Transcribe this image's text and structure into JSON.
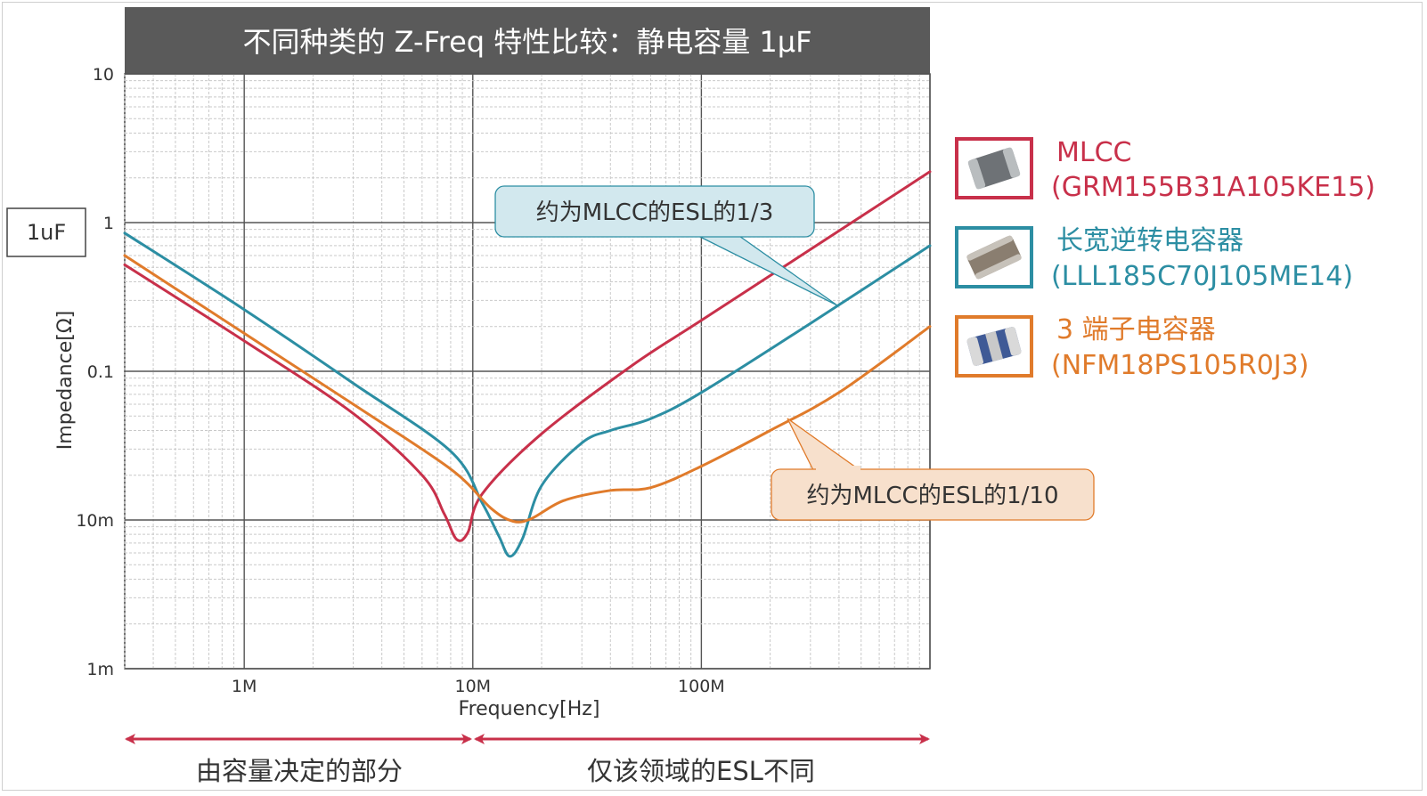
{
  "chart_data": {
    "type": "line",
    "title": "不同种类的 Z-Freq 特性比较：静电容量 1μF",
    "badge": "1uF",
    "xlabel": "Frequency[Hz]",
    "ylabel": "Impedance[Ω]",
    "x_scale": "log",
    "y_scale": "log",
    "xlim": [
      300000,
      1000000000
    ],
    "ylim": [
      0.001,
      10
    ],
    "x_ticks": [
      {
        "value": 1000000,
        "label": "1M"
      },
      {
        "value": 10000000,
        "label": "10M"
      },
      {
        "value": 100000000,
        "label": "100M"
      }
    ],
    "y_ticks": [
      {
        "value": 0.001,
        "label": "1m"
      },
      {
        "value": 0.01,
        "label": "10m"
      },
      {
        "value": 0.1,
        "label": "0.1"
      },
      {
        "value": 1,
        "label": "1"
      },
      {
        "value": 10,
        "label": "10"
      }
    ],
    "grid": true,
    "legend_position": "right",
    "series": [
      {
        "name": "MLCC",
        "part": "(GRM155B31A105KE15)",
        "color": "#c8304a",
        "x": [
          300000,
          1000000,
          3000000,
          6000000,
          7500000,
          8500000,
          9500000,
          11000000,
          20000000,
          50000000,
          100000000,
          300000000,
          1000000000
        ],
        "y": [
          0.52,
          0.16,
          0.052,
          0.02,
          0.011,
          0.0074,
          0.0082,
          0.015,
          0.038,
          0.11,
          0.22,
          0.66,
          2.2
        ]
      },
      {
        "name": "长宽逆转电容器",
        "part": "(LLL185C70J105ME14)",
        "color": "#2c8ea3",
        "x": [
          300000,
          1000000,
          3000000,
          8000000,
          11000000,
          13000000,
          14500000,
          16500000,
          20000000,
          30000000,
          40000000,
          60000000,
          100000000,
          300000000,
          1000000000
        ],
        "y": [
          0.85,
          0.26,
          0.083,
          0.029,
          0.013,
          0.0078,
          0.0057,
          0.0075,
          0.017,
          0.033,
          0.04,
          0.048,
          0.072,
          0.21,
          0.7
        ]
      },
      {
        "name": "3 端子电容器",
        "part": "(NFM18PS105R0J3)",
        "color": "#e07b2b",
        "x": [
          300000,
          1000000,
          3000000,
          8000000,
          12000000,
          15000000,
          18000000,
          25000000,
          40000000,
          60000000,
          100000000,
          200000000,
          400000000,
          1000000000
        ],
        "y": [
          0.6,
          0.18,
          0.06,
          0.022,
          0.012,
          0.0098,
          0.0102,
          0.0135,
          0.0158,
          0.0165,
          0.023,
          0.04,
          0.072,
          0.2
        ]
      }
    ],
    "annotations": [
      {
        "text": "约为MLCC的ESL的1/3",
        "color": "#2c8ea3"
      },
      {
        "text": "约为MLCC的ESL的1/10",
        "color": "#e07b2b"
      }
    ],
    "bottom_ranges": [
      {
        "label": "由容量决定的部分"
      },
      {
        "label": "仅该领域的ESL不同"
      }
    ]
  }
}
